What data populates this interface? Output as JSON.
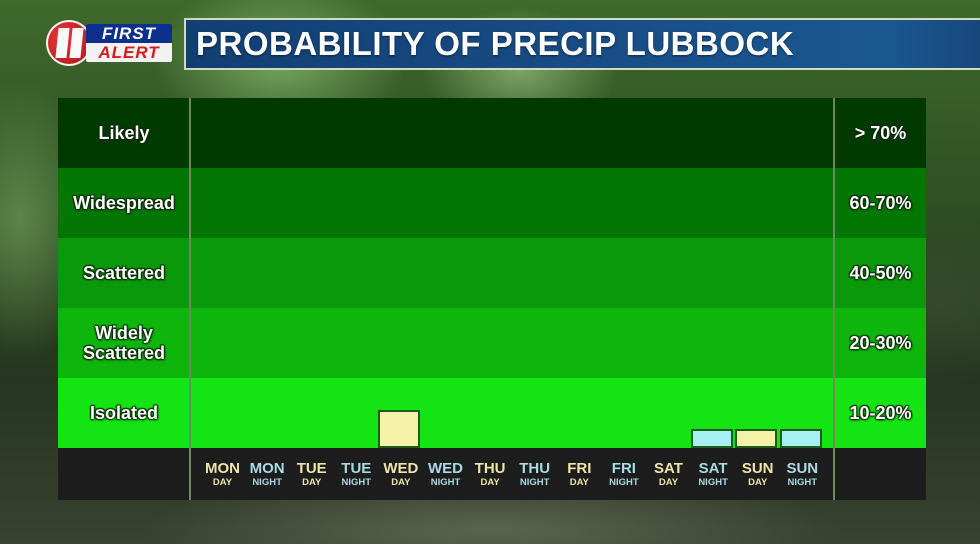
{
  "logo": {
    "number": "11",
    "line1": "FIRST",
    "line2": "ALERT"
  },
  "title": "PROBABILITY OF PRECIP LUBBOCK",
  "chart_data": {
    "type": "bar",
    "title": "PROBABILITY OF PRECIP LUBBOCK",
    "xlabel": "",
    "ylabel": "",
    "categories": [
      "MON DAY",
      "MON NIGHT",
      "TUE DAY",
      "TUE NIGHT",
      "WED DAY",
      "WED NIGHT",
      "THU DAY",
      "THU NIGHT",
      "FRI DAY",
      "FRI NIGHT",
      "SAT DAY",
      "SAT NIGHT",
      "SUN DAY",
      "SUN NIGHT"
    ],
    "values": [
      0,
      0,
      0,
      0,
      15,
      0,
      0,
      0,
      0,
      0,
      0,
      10,
      10,
      10
    ],
    "bar_colors": {
      "day": "#f4f1a8",
      "night": "#a6f0f4"
    },
    "ylim": [
      0,
      80
    ],
    "bands": [
      {
        "label": "Likely",
        "range": "> 70%",
        "color": "#013a01"
      },
      {
        "label": "Widespread",
        "range": "60-70%",
        "color": "#047604"
      },
      {
        "label": "Scattered",
        "range": "40-50%",
        "color": "#0a990a"
      },
      {
        "label": "Widely Scattered",
        "range": "20-30%",
        "color": "#0db50d"
      },
      {
        "label": "Isolated",
        "range": "10-20%",
        "color": "#14e314"
      }
    ],
    "grid": false,
    "legend": "none"
  },
  "rows": [
    {
      "label": "Likely",
      "range": "> 70%"
    },
    {
      "label": "Widespread",
      "range": "60-70%"
    },
    {
      "label": "Scattered",
      "range": "40-50%"
    },
    {
      "label": "Widely\nScattered",
      "range": "20-30%"
    },
    {
      "label": "Isolated",
      "range": "10-20%"
    }
  ],
  "days": [
    {
      "name": "MON",
      "period": "DAY"
    },
    {
      "name": "MON",
      "period": "NIGHT"
    },
    {
      "name": "TUE",
      "period": "DAY"
    },
    {
      "name": "TUE",
      "period": "NIGHT"
    },
    {
      "name": "WED",
      "period": "DAY"
    },
    {
      "name": "WED",
      "period": "NIGHT"
    },
    {
      "name": "THU",
      "period": "DAY"
    },
    {
      "name": "THU",
      "period": "NIGHT"
    },
    {
      "name": "FRI",
      "period": "DAY"
    },
    {
      "name": "FRI",
      "period": "NIGHT"
    },
    {
      "name": "SAT",
      "period": "DAY"
    },
    {
      "name": "SAT",
      "period": "NIGHT"
    },
    {
      "name": "SUN",
      "period": "DAY"
    },
    {
      "name": "SUN",
      "period": "NIGHT"
    }
  ]
}
